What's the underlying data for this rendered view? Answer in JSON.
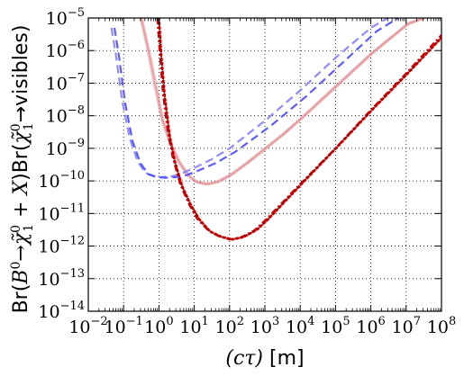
{
  "chart_data": {
    "type": "line",
    "xscale": "log",
    "yscale": "log",
    "xlim": [
      0.01,
      100000000
    ],
    "ylim": [
      1e-14,
      1e-05
    ],
    "grid": true,
    "xlabel_parts": {
      "math": "(cτ)",
      "unit": "[m]"
    },
    "ylabel_parts": {
      "prefix": "Br(",
      "b": "B",
      "b_sup": "0",
      "arrow": "→",
      "chi": "χ̃",
      "chi_sup": "0",
      "chi_sub": "1",
      "plus_x": " + X",
      "mid": ")Br(",
      "visibles": "→visibles)"
    },
    "x_ticks": [
      {
        "base": "10",
        "exp": "−2",
        "value": 0.01
      },
      {
        "base": "10",
        "exp": "−1",
        "value": 0.1
      },
      {
        "base": "10",
        "exp": "0",
        "value": 1
      },
      {
        "base": "10",
        "exp": "1",
        "value": 10
      },
      {
        "base": "10",
        "exp": "2",
        "value": 100
      },
      {
        "base": "10",
        "exp": "3",
        "value": 1000
      },
      {
        "base": "10",
        "exp": "4",
        "value": 10000
      },
      {
        "base": "10",
        "exp": "5",
        "value": 100000
      },
      {
        "base": "10",
        "exp": "6",
        "value": 1000000
      },
      {
        "base": "10",
        "exp": "7",
        "value": 10000000
      },
      {
        "base": "10",
        "exp": "8",
        "value": 100000000
      }
    ],
    "y_ticks": [
      {
        "base": "10",
        "exp": "−5",
        "value": 1e-05
      },
      {
        "base": "10",
        "exp": "−6",
        "value": 1e-06
      },
      {
        "base": "10",
        "exp": "−7",
        "value": 1e-07
      },
      {
        "base": "10",
        "exp": "−8",
        "value": 1e-08
      },
      {
        "base": "10",
        "exp": "−9",
        "value": 1e-09
      },
      {
        "base": "10",
        "exp": "−10",
        "value": 1e-10
      },
      {
        "base": "10",
        "exp": "−11",
        "value": 1e-11
      },
      {
        "base": "10",
        "exp": "−12",
        "value": 1e-12
      },
      {
        "base": "10",
        "exp": "−13",
        "value": 1e-13
      },
      {
        "base": "10",
        "exp": "−14",
        "value": 1e-14
      }
    ],
    "series": [
      {
        "color": "#f0a8b0",
        "style": "solid",
        "alpha": 0.6,
        "x": [
          0.3,
          0.45,
          0.7,
          1.2,
          2,
          3.5,
          6,
          10,
          20,
          40,
          100,
          300,
          1000,
          3000,
          10000,
          100000,
          1000000,
          10000000,
          30000000
        ],
        "y": [
          1e-05,
          1.5e-06,
          1.2e-07,
          8e-09,
          1.5e-09,
          4e-10,
          1.6e-10,
          1e-10,
          8e-11,
          9e-11,
          1.5e-10,
          3.5e-10,
          1e-09,
          2.5e-09,
          8e-09,
          8e-08,
          8e-07,
          6e-06,
          1e-05
        ]
      },
      {
        "color": "#d87878",
        "style": "solid",
        "alpha": 0.5,
        "x": [
          0.32,
          0.5,
          0.8,
          1.3,
          2.2,
          4,
          7,
          12,
          25,
          50,
          120,
          350,
          1200,
          3500,
          12000,
          120000,
          1200000,
          12000000,
          35000000
        ],
        "y": [
          1e-05,
          1.2e-06,
          1e-07,
          7e-09,
          1.3e-09,
          3.5e-10,
          1.5e-10,
          9e-11,
          8e-11,
          9.5e-11,
          1.6e-10,
          3.8e-10,
          1.1e-09,
          2.8e-09,
          9e-09,
          9e-08,
          9e-07,
          7e-06,
          1e-05
        ]
      },
      {
        "color": "#7a7aff",
        "style": "dashed",
        "alpha": 0.85,
        "x": [
          0.045,
          0.06,
          0.09,
          0.15,
          0.25,
          0.4,
          0.7,
          1.2,
          2.5,
          5,
          10,
          30,
          100,
          1000,
          10000,
          100000,
          1000000,
          3000000
        ],
        "y": [
          5e-06,
          8e-07,
          3e-08,
          2e-09,
          4e-10,
          1.8e-10,
          1.4e-10,
          1.3e-10,
          1.4e-10,
          1.8e-10,
          2.5e-10,
          4.5e-10,
          1e-09,
          7e-09,
          6e-08,
          6e-07,
          5e-06,
          1e-05
        ]
      },
      {
        "color": "#4a4aff",
        "style": "dashed",
        "alpha": 0.9,
        "x": [
          0.055,
          0.075,
          0.11,
          0.18,
          0.3,
          0.5,
          0.9,
          1.5,
          3,
          6,
          12,
          40,
          150,
          1500,
          15000,
          150000,
          1500000,
          6000000
        ],
        "y": [
          5e-06,
          6e-07,
          2.5e-08,
          1.6e-09,
          3.5e-10,
          1.6e-10,
          1.3e-10,
          1.25e-10,
          1.3e-10,
          1.5e-10,
          2e-10,
          3.5e-10,
          8e-10,
          5e-09,
          4e-08,
          4e-07,
          4e-06,
          1e-05
        ]
      },
      {
        "color": "#e00000",
        "style": "dashdot",
        "alpha": 1,
        "x": [
          0.9,
          1.05,
          1.3,
          1.8,
          2.5,
          4,
          7,
          12,
          25,
          50,
          100,
          200,
          500,
          1000,
          10000,
          100000,
          1000000,
          10000000,
          100000000
        ],
        "y": [
          1e-05,
          1e-06,
          5e-08,
          3e-09,
          5e-10,
          8e-11,
          2e-11,
          7e-12,
          3e-12,
          2e-12,
          1.6e-12,
          1.8e-12,
          3e-12,
          6e-12,
          8e-11,
          1e-09,
          1.5e-08,
          2e-07,
          3e-06
        ]
      },
      {
        "color": "#b80000",
        "style": "dotted",
        "alpha": 1,
        "x": [
          1.0,
          1.15,
          1.45,
          2,
          2.8,
          4.5,
          8,
          14,
          28,
          60,
          120,
          250,
          600,
          1200,
          12000,
          120000,
          1200000,
          12000000,
          100000000
        ],
        "y": [
          1e-05,
          8e-07,
          4e-08,
          2.5e-09,
          4e-10,
          7e-11,
          1.8e-11,
          6.5e-12,
          2.8e-12,
          1.9e-12,
          1.6e-12,
          1.9e-12,
          3.2e-12,
          6.5e-12,
          9e-11,
          1.2e-09,
          1.7e-08,
          2.2e-07,
          2.5e-06
        ]
      }
    ]
  }
}
